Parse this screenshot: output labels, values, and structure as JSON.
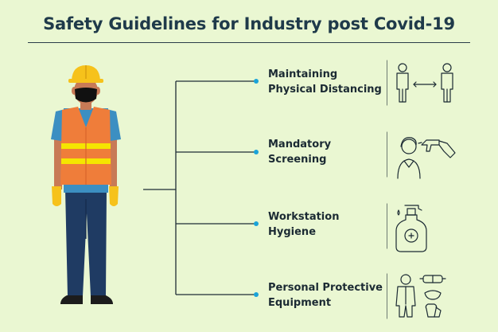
{
  "title": "Safety Guidelines for Industry post Covid-19",
  "colors": {
    "background": "#eaf7d2",
    "title_text": "#1f3a4a",
    "connector": "#1f2d36",
    "dot": "#1aa3d9",
    "vest": "#ef7d3a",
    "reflective_stripe": "#f5e500",
    "helmet": "#f6c21b",
    "trousers": "#1f3b63",
    "shirt": "#3c8fc2"
  },
  "guidelines": [
    {
      "line1": "Maintaining",
      "line2": "Physical Distancing",
      "icon": "physical-distancing-icon"
    },
    {
      "line1": "Mandatory",
      "line2": "Screening",
      "icon": "temperature-screening-icon"
    },
    {
      "line1": "Workstation",
      "line2": "Hygiene",
      "icon": "hand-sanitizer-icon"
    },
    {
      "line1": "Personal Protective",
      "line2": "Equipment",
      "icon": "ppe-kit-icon"
    }
  ]
}
